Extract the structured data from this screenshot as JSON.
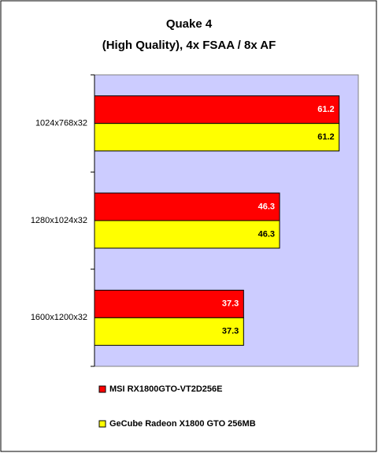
{
  "chart_data": {
    "type": "hbar",
    "title": "Quake 4",
    "subtitle": "(High Quality), 4x FSAA / 8x AF",
    "categories": [
      "1024x768x32",
      "1280x1024x32",
      "1600x1200x32"
    ],
    "series": [
      {
        "name": "MSI RX1800GTO-VT2D256E",
        "color": "#ff0000",
        "values": [
          61.2,
          46.3,
          37.3
        ]
      },
      {
        "name": "GeCube Radeon X1800 GTO 256MB",
        "color": "#ffff00",
        "values": [
          61.2,
          46.3,
          37.3
        ]
      }
    ],
    "xlim": [
      0,
      66
    ],
    "legend": "bottom"
  }
}
